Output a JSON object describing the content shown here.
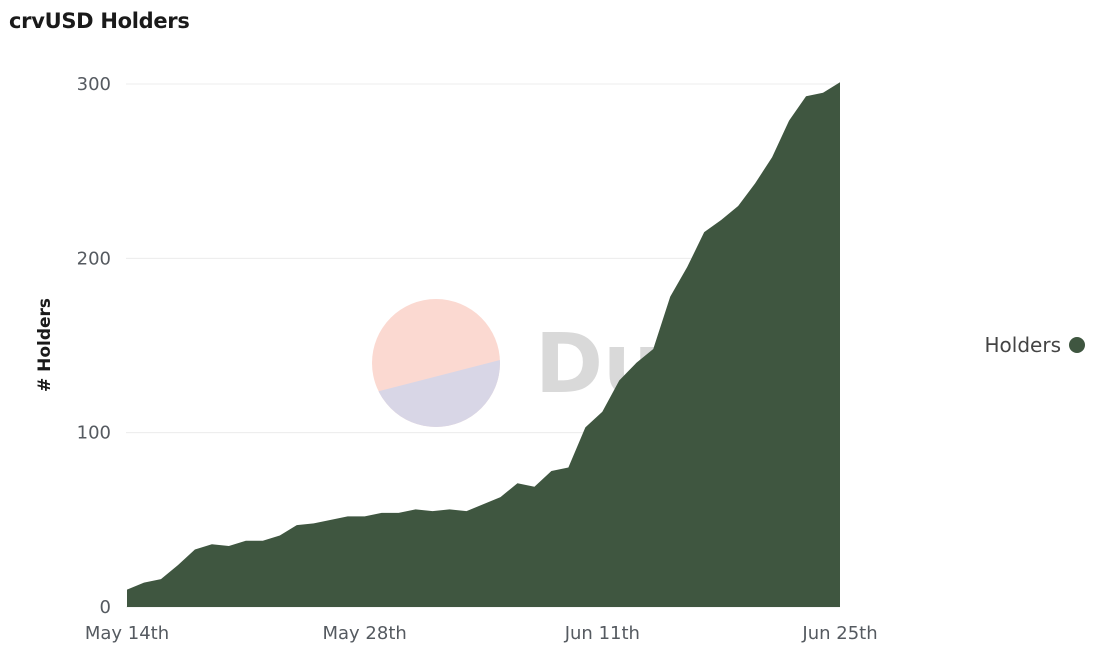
{
  "chart_data": {
    "type": "area",
    "title": "crvUSD Holders",
    "ylabel": "# Holders",
    "xlabel": "",
    "x_tick_labels": [
      "May 14th",
      "May 28th",
      "Jun 11th",
      "Jun 25th"
    ],
    "y_ticks": [
      0,
      100,
      200,
      300
    ],
    "ylim": [
      0,
      300
    ],
    "x_start": "2023-05-14",
    "grid": true,
    "legend_position": "right",
    "series": [
      {
        "name": "Holders",
        "color": "#3f5640",
        "x": [
          "2023-05-14",
          "2023-05-15",
          "2023-05-16",
          "2023-05-17",
          "2023-05-18",
          "2023-05-19",
          "2023-05-20",
          "2023-05-21",
          "2023-05-22",
          "2023-05-23",
          "2023-05-24",
          "2023-05-25",
          "2023-05-26",
          "2023-05-27",
          "2023-05-28",
          "2023-05-29",
          "2023-05-30",
          "2023-05-31",
          "2023-06-01",
          "2023-06-02",
          "2023-06-03",
          "2023-06-04",
          "2023-06-05",
          "2023-06-06",
          "2023-06-07",
          "2023-06-08",
          "2023-06-09",
          "2023-06-10",
          "2023-06-11",
          "2023-06-12",
          "2023-06-13",
          "2023-06-14",
          "2023-06-15",
          "2023-06-16",
          "2023-06-17",
          "2023-06-18",
          "2023-06-19",
          "2023-06-20",
          "2023-06-21",
          "2023-06-22",
          "2023-06-23",
          "2023-06-24",
          "2023-06-25"
        ],
        "values": [
          10,
          14,
          16,
          24,
          33,
          36,
          35,
          38,
          38,
          41,
          47,
          48,
          50,
          52,
          52,
          54,
          54,
          56,
          55,
          56,
          55,
          59,
          63,
          71,
          69,
          78,
          80,
          103,
          112,
          130,
          140,
          148,
          178,
          195,
          215,
          222,
          230,
          243,
          258,
          279,
          293,
          295,
          301
        ],
        "final_value": 301
      }
    ]
  },
  "watermark": {
    "text": "Dune",
    "circle_top_color": "#fbd9d1",
    "circle_bottom_color": "#d8d6e6",
    "text_color": "#d9d9d9"
  },
  "legend": {
    "label": "Holders",
    "color": "#3f5640"
  }
}
